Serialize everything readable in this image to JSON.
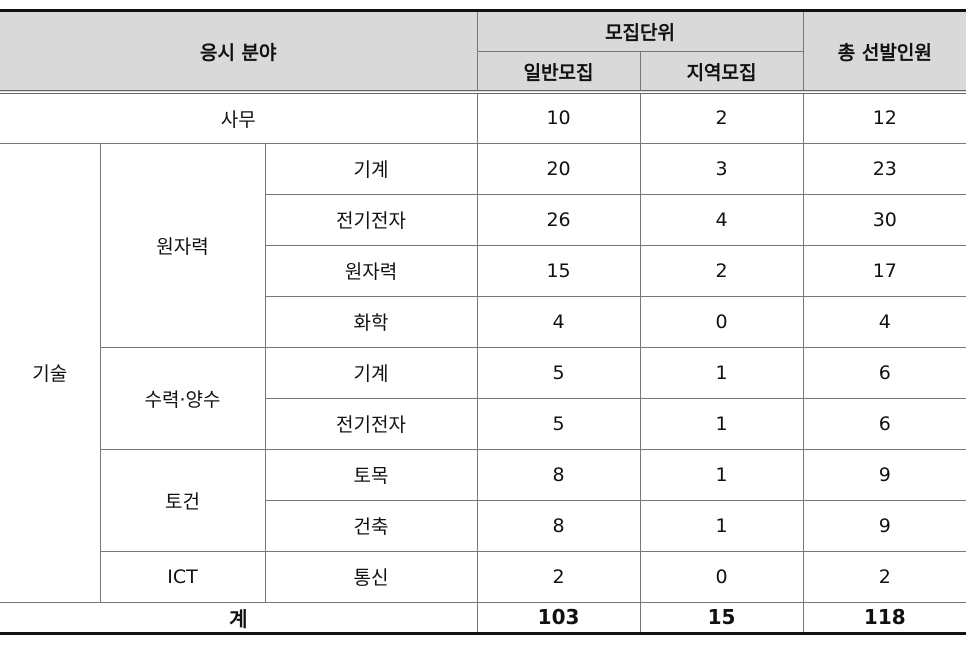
{
  "header": {
    "field": "응시 분야",
    "unit": "모집단위",
    "general": "일반모집",
    "regional": "지역모집",
    "total": "총 선발인원"
  },
  "office": {
    "label": "사무",
    "general": "10",
    "regional": "2",
    "total": "12"
  },
  "tech": {
    "label": "기술",
    "groups": [
      {
        "label": "원자력",
        "rows": [
          {
            "label": "기계",
            "general": "20",
            "regional": "3",
            "total": "23"
          },
          {
            "label": "전기전자",
            "general": "26",
            "regional": "4",
            "total": "30"
          },
          {
            "label": "원자력",
            "general": "15",
            "regional": "2",
            "total": "17"
          },
          {
            "label": "화학",
            "general": "4",
            "regional": "0",
            "total": "4"
          }
        ]
      },
      {
        "label": "수력·양수",
        "rows": [
          {
            "label": "기계",
            "general": "5",
            "regional": "1",
            "total": "6"
          },
          {
            "label": "전기전자",
            "general": "5",
            "regional": "1",
            "total": "6"
          }
        ]
      },
      {
        "label": "토건",
        "rows": [
          {
            "label": "토목",
            "general": "8",
            "regional": "1",
            "total": "9"
          },
          {
            "label": "건축",
            "general": "8",
            "regional": "1",
            "total": "9"
          }
        ]
      },
      {
        "label": "ICT",
        "rows": [
          {
            "label": "통신",
            "general": "2",
            "regional": "0",
            "total": "2"
          }
        ]
      }
    ]
  },
  "sum": {
    "label": "계",
    "general": "103",
    "regional": "15",
    "total": "118"
  },
  "colors": {
    "header_bg": "#d9d9d9"
  }
}
